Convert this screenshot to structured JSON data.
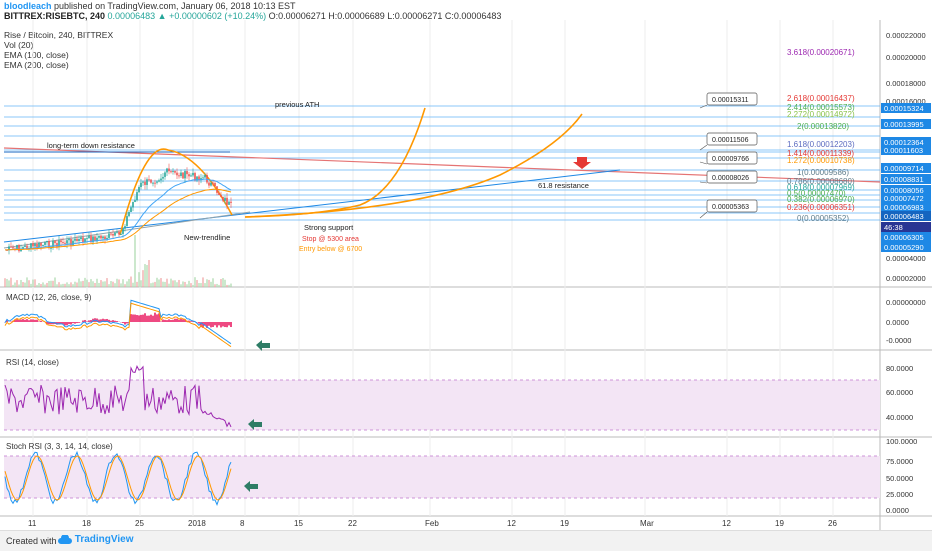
{
  "header": {
    "author": "bloodleach",
    "published": "published on TradingView.com, January 06, 2018 10:13 EST",
    "symbol": "BITTREX:RISEBTC, 240",
    "last": "0.00006483",
    "change": "+0.00000602 (+10.24%)",
    "ohlc": "O:0.00006271 H:0.00006689 L:0.00006271 C:0.00006483"
  },
  "legend": {
    "title": "Rise / Bitcoin, 240, BITTREX",
    "vol": "Vol (20)",
    "ema100": "EMA (100, close)",
    "ema200": "EMA (200, close)"
  },
  "annotations": {
    "previous_ath": "previous ATH",
    "downtrend": "long-term down resistance",
    "resistance618": "61.8 resistance",
    "strong_support": "Strong support",
    "stop": "Stop @ 5300 area",
    "entry": "Entry below @ 6700",
    "new_trendline": "New-trendline"
  },
  "callouts": [
    "0.00015311",
    "0.00011506",
    "0.00009766",
    "0.00008026",
    "0.00005363"
  ],
  "fib_levels": [
    {
      "label": "3.618(0.00020671)",
      "color": "#9c27b0"
    },
    {
      "label": "2.618(0.00016437)",
      "color": "#e53935"
    },
    {
      "label": "2.414(0.00015573)",
      "color": "#4caf50"
    },
    {
      "label": "2.272(0.00014972)",
      "color": "#8bc34a"
    },
    {
      "label": "2(0.00013820)",
      "color": "#4caf50"
    },
    {
      "label": "1.618(0.00012203)",
      "color": "#5c6bc0"
    },
    {
      "label": "1.414(0.00011339)",
      "color": "#e53935"
    },
    {
      "label": "1.272(0.00010738)",
      "color": "#ff9800"
    },
    {
      "label": "1(0.00009586)",
      "color": "#607d8b"
    },
    {
      "label": "0.786(0.00008680)",
      "color": "#607d8b"
    },
    {
      "label": "0.618(0.00007969)",
      "color": "#26a69a"
    },
    {
      "label": "0.5(0.00007470)",
      "color": "#4caf50"
    },
    {
      "label": "0.382(0.00006970)",
      "color": "#4caf50"
    },
    {
      "label": "0.236(0.00006351)",
      "color": "#e53935"
    },
    {
      "label": "0(0.00005352)",
      "color": "#607d8b"
    }
  ],
  "price_axis": [
    "0.00022000",
    "0.00020000",
    "0.00018000",
    "0.00016000",
    "0.00015324",
    "0.00013995",
    "0.00012364",
    "0.00011603",
    "0.00009714",
    "0.00008831",
    "0.00008056",
    "0.00007472",
    "0.00006983",
    "0.00006483",
    "46:38",
    "0.00006305",
    "0.00005290",
    "0.00004000",
    "0.00002000",
    "0.00000000"
  ],
  "panes": {
    "macd": {
      "title": "MACD (12, 26, close, 9)",
      "axis": [
        "0.0000",
        "-0.0000"
      ]
    },
    "rsi": {
      "title": "RSI (14, close)",
      "axis": [
        "80.0000",
        "60.0000",
        "40.0000"
      ]
    },
    "stoch": {
      "title": "Stoch RSI (3, 3, 14, 14, close)",
      "axis": [
        "100.0000",
        "75.0000",
        "50.0000",
        "25.0000",
        "0.0000"
      ]
    }
  },
  "time_axis": [
    "11",
    "18",
    "25",
    "2018",
    "8",
    "15",
    "22",
    "Feb",
    "12",
    "19",
    "Mar",
    "12",
    "19",
    "26"
  ],
  "footer": {
    "created": "Created with",
    "brand": "TradingView"
  },
  "colors": {
    "up": "#26a69a",
    "down": "#ef5350",
    "fib_line": "#2196f3",
    "macd": "#2196f3",
    "signal": "#ff9800",
    "rsi": "#9c27b0",
    "band": "#e1bee7",
    "arc": "#ff9800"
  }
}
